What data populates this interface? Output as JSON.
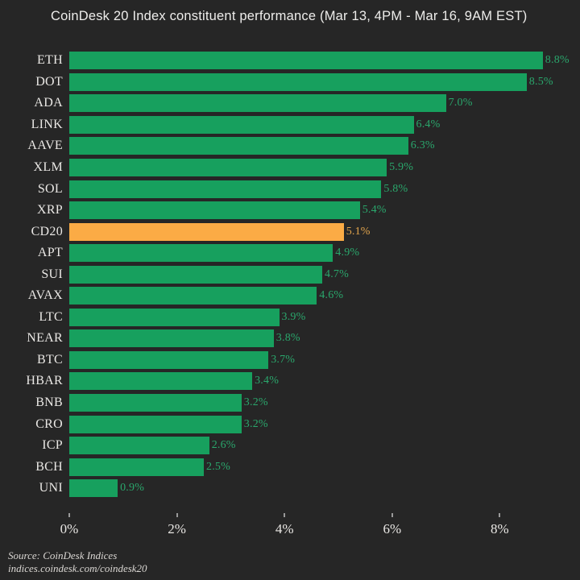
{
  "title": "CoinDesk 20 Index constituent performance (Mar 13, 4PM - Mar 16, 9AM EST)",
  "chart_data": {
    "type": "bar",
    "orientation": "horizontal",
    "categories": [
      "ETH",
      "DOT",
      "ADA",
      "LINK",
      "AAVE",
      "XLM",
      "SOL",
      "XRP",
      "CD20",
      "APT",
      "SUI",
      "AVAX",
      "LTC",
      "NEAR",
      "BTC",
      "HBAR",
      "BNB",
      "CRO",
      "ICP",
      "BCH",
      "UNI"
    ],
    "values": [
      8.8,
      8.5,
      7.0,
      6.4,
      6.3,
      5.9,
      5.8,
      5.4,
      5.1,
      4.9,
      4.7,
      4.6,
      3.9,
      3.8,
      3.7,
      3.4,
      3.2,
      3.2,
      2.6,
      2.5,
      0.9
    ],
    "value_labels": [
      "8.8%",
      "8.5%",
      "7.0%",
      "6.4%",
      "6.3%",
      "5.9%",
      "5.8%",
      "5.4%",
      "5.1%",
      "4.9%",
      "4.7%",
      "4.6%",
      "3.9%",
      "3.8%",
      "3.7%",
      "3.4%",
      "3.2%",
      "3.2%",
      "2.6%",
      "2.5%",
      "0.9%"
    ],
    "highlight_category": "CD20",
    "x_tick_labels": [
      "0%",
      "2%",
      "4%",
      "6%",
      "8%"
    ],
    "x_tick_values": [
      0,
      2,
      4,
      6,
      8
    ],
    "xlim": [
      0,
      9.4
    ],
    "grid": "off",
    "legend": "none",
    "bar_color": "#17a05e",
    "highlight_bar_color": "#fbab45",
    "value_text_color": "#2aa76c",
    "highlight_value_text_color": "#e2a44c"
  },
  "source": {
    "line1": "Source: CoinDesk Indices",
    "line2": "indices.coindesk.com/coindesk20"
  }
}
